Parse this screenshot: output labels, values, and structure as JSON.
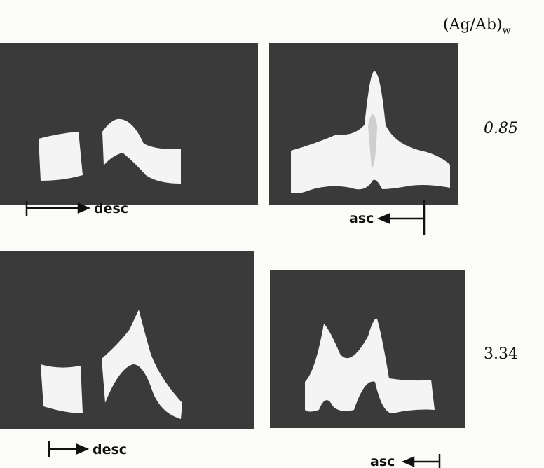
{
  "header": {
    "label": "(Ag/Ab)",
    "subscript": "w"
  },
  "rows": [
    {
      "value_label": "0.85",
      "panels": [
        {
          "direction": "desc"
        },
        {
          "direction": "asc"
        }
      ]
    },
    {
      "value_label": "3.34",
      "panels": [
        {
          "direction": "desc"
        },
        {
          "direction": "asc"
        }
      ]
    }
  ]
}
